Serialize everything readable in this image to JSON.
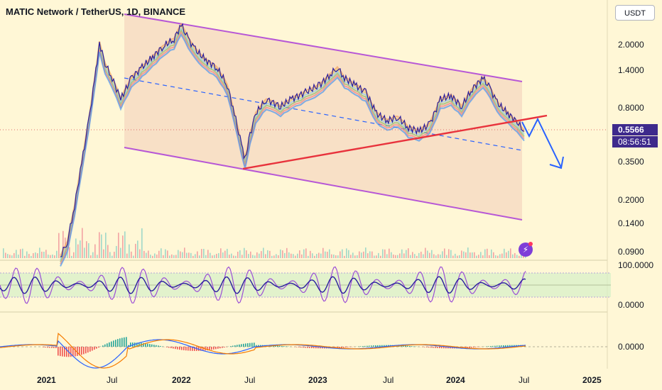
{
  "header": {
    "title": "MATIC Network / TetherUS, 1D, BINANCE",
    "currency_button": "USDT"
  },
  "price_axis": {
    "labels": [
      "2.0000",
      "1.4000",
      "0.8000",
      "0.3500",
      "0.2000",
      "0.1400",
      "0.0900"
    ],
    "current_price": "0.5566",
    "countdown": "08:56:51"
  },
  "oscillator_axis": {
    "labels": [
      "100.0000",
      "0.0000"
    ]
  },
  "macd_axis": {
    "labels": [
      "0.0000"
    ]
  },
  "time_axis": {
    "labels": [
      "2021",
      "Jul",
      "2022",
      "Jul",
      "2023",
      "Jul",
      "2024",
      "Jul",
      "2025"
    ]
  },
  "colors": {
    "background": "#fff7d6",
    "channel_line": "#b757d6",
    "channel_fill": "#f7dcc3",
    "support_line": "#e8323c",
    "projection_arrow": "#2962ff",
    "price_line": "#2a1f9e",
    "price_tag": "#3e2a8c"
  },
  "icons": {
    "lightning": "lightning-icon"
  }
}
